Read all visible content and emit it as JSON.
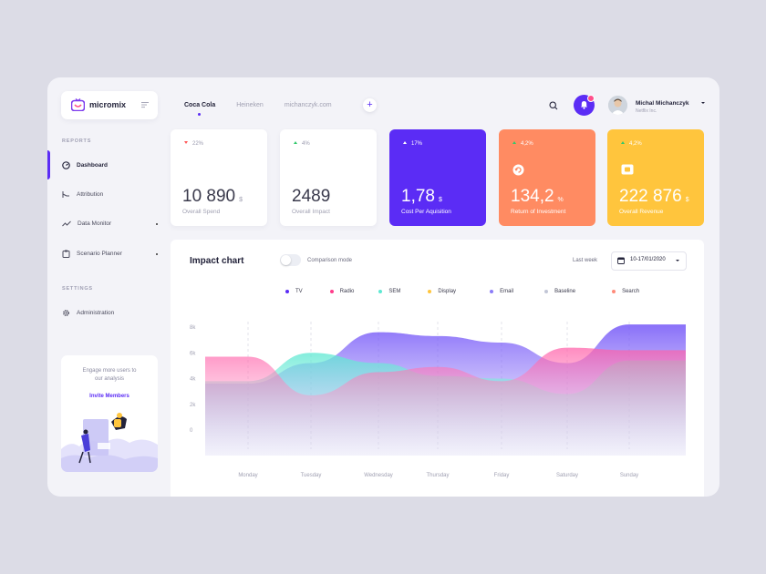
{
  "brand": {
    "name": "micromix"
  },
  "sidebar": {
    "sections": [
      {
        "label": "REPORTS"
      },
      {
        "label": "SETTINGS"
      }
    ],
    "items": [
      {
        "label": "Dashboard",
        "icon": "dashboard-icon",
        "active": true
      },
      {
        "label": "Attribution",
        "icon": "attribution-icon"
      },
      {
        "label": "Data Monitor",
        "icon": "trend-icon"
      },
      {
        "label": "Scenario Planner",
        "icon": "clipboard-icon"
      },
      {
        "label": "Administration",
        "icon": "gear-icon"
      }
    ],
    "promo": {
      "text_line1": "Engage more users to",
      "text_line2": "our analysis",
      "link": "Invite Members"
    }
  },
  "tabs": [
    {
      "label": "Coca Cola",
      "active": true
    },
    {
      "label": "Heineken"
    },
    {
      "label": "michanczyk.com"
    }
  ],
  "add_tab_label": "+",
  "user": {
    "name": "Michal Michanczyk",
    "org": "Netflix Inc."
  },
  "kpis": [
    {
      "delta": "22%",
      "dir": "down",
      "value": "10 890",
      "unit": "$",
      "label": "Overall Spend",
      "bg": "#ffffff"
    },
    {
      "delta": "4%",
      "dir": "up",
      "value": "2489",
      "unit": "",
      "label": "Overall Impact",
      "bg": "#ffffff"
    },
    {
      "delta": "17%",
      "dir": "up",
      "value": "1,78",
      "unit": "$",
      "label": "Cost Per Aquisition",
      "bg": "#5b2cf5"
    },
    {
      "delta": "4,2%",
      "dir": "up",
      "value": "134,2",
      "unit": "%",
      "label": "Return of Investment",
      "bg": "#ff8b62"
    },
    {
      "delta": "4,2%",
      "dir": "up",
      "value": "222 876",
      "unit": "$",
      "label": "Overall Revenue",
      "bg": "#ffc53d"
    }
  ],
  "chart_panel": {
    "title": "Impact chart",
    "toggle_label": "Comparison mode",
    "period_label": "Last week",
    "date_range": "10-17/01/2020"
  },
  "chart_data": {
    "type": "area",
    "categories": [
      "Monday",
      "Tuesday",
      "Wednesday",
      "Thursday",
      "Friday",
      "Saturday",
      "Sunday"
    ],
    "y_ticks": [
      "8k",
      "6k",
      "4k",
      "2k",
      "0"
    ],
    "ylim": [
      0,
      8000
    ],
    "legend": [
      {
        "name": "TV",
        "color": "#5b2cf5"
      },
      {
        "name": "Radio",
        "color": "#ff3d8b"
      },
      {
        "name": "SEM",
        "color": "#5ee8d2"
      },
      {
        "name": "Display",
        "color": "#ffc53d"
      },
      {
        "name": "Email",
        "color": "#8b7cf8"
      },
      {
        "name": "Baseline",
        "color": "#c2c6d6"
      },
      {
        "name": "Search",
        "color": "#ff8b7a"
      }
    ],
    "series": [
      {
        "name": "TV",
        "values": [
          3600,
          5200,
          7600,
          7300,
          6800,
          5200,
          8200
        ]
      },
      {
        "name": "SEM",
        "values": [
          3800,
          6000,
          5200,
          4200,
          4000,
          2800,
          5400
        ]
      },
      {
        "name": "Radio",
        "values": [
          5700,
          2700,
          4500,
          4900,
          3800,
          6400,
          6200
        ]
      }
    ],
    "grid": true
  },
  "colors": {
    "accent": "#5b2cf5",
    "notification": "#ff4f8b"
  }
}
